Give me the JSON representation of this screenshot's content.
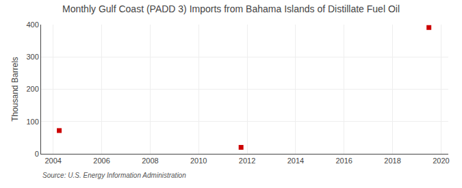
{
  "chart_data": {
    "type": "scatter",
    "title": "Monthly Gulf Coast (PADD 3) Imports from Bahama Islands of Distillate Fuel Oil",
    "ylabel": "Thousand Barrels",
    "annotations": [
      "Source: U.S. Energy Information Administration"
    ],
    "x": [
      2004.25,
      2011.75,
      2019.5
    ],
    "values": [
      72,
      20,
      391
    ],
    "color": "#cc0000",
    "marker": "square",
    "xlim": [
      2003.5,
      2020.3
    ],
    "ylim": [
      0,
      400
    ],
    "xticks": [
      2004,
      2006,
      2008,
      2010,
      2012,
      2014,
      2016,
      2018,
      2020
    ],
    "yticks": [
      0,
      100,
      200,
      300,
      400
    ],
    "grid": true
  }
}
